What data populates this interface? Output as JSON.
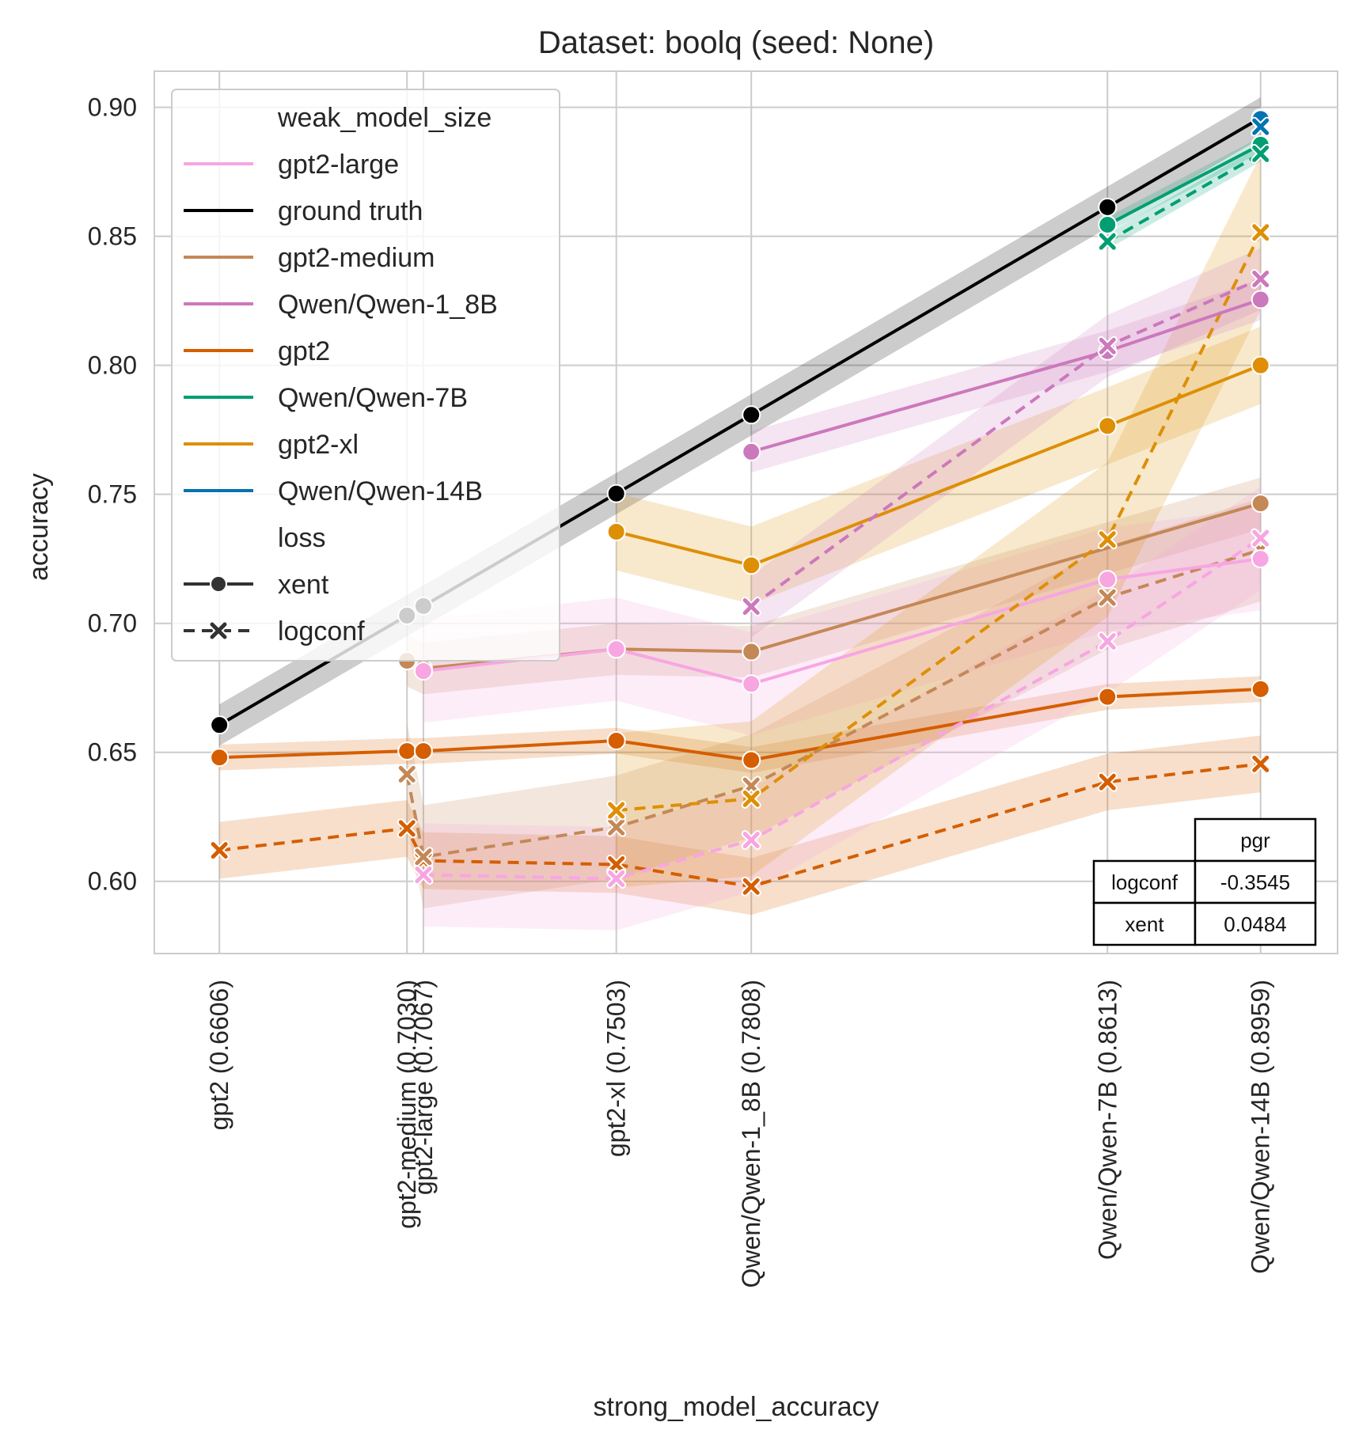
{
  "chart_data": {
    "type": "line",
    "title": "Dataset: boolq (seed: None)",
    "xlabel": "strong_model_accuracy",
    "ylabel": "accuracy",
    "xlim": [
      0.6459,
      0.9133
    ],
    "ylim": [
      0.572,
      0.914
    ],
    "grid": true,
    "x_ticks": [
      {
        "value": 0.6606,
        "label": "gpt2 (0.6606)"
      },
      {
        "value": 0.703,
        "label": "gpt2-medium (0.7030)"
      },
      {
        "value": 0.7067,
        "label": "gpt2-large (0.7067)"
      },
      {
        "value": 0.7503,
        "label": "gpt2-xl (0.7503)"
      },
      {
        "value": 0.7808,
        "label": "Qwen/Qwen-1_8B (0.7808)"
      },
      {
        "value": 0.8613,
        "label": "Qwen/Qwen-7B (0.8613)"
      },
      {
        "value": 0.8959,
        "label": "Qwen/Qwen-14B (0.8959)"
      }
    ],
    "y_ticks": [
      {
        "value": 0.6,
        "label": "0.60"
      },
      {
        "value": 0.65,
        "label": "0.65"
      },
      {
        "value": 0.7,
        "label": "0.70"
      },
      {
        "value": 0.75,
        "label": "0.75"
      },
      {
        "value": 0.8,
        "label": "0.80"
      },
      {
        "value": 0.85,
        "label": "0.85"
      },
      {
        "value": 0.9,
        "label": "0.90"
      }
    ],
    "series": [
      {
        "name": "ground truth",
        "loss": "xent",
        "color": "#000000",
        "band": 0.008,
        "x": [
          0.6606,
          0.703,
          0.7067,
          0.7503,
          0.7808,
          0.8613,
          0.8959
        ],
        "y": [
          0.6606,
          0.703,
          0.7067,
          0.7503,
          0.7808,
          0.8613,
          0.8959
        ]
      },
      {
        "name": "gpt2",
        "loss": "xent",
        "color": "#d55e00",
        "band": 0.005,
        "x": [
          0.6606,
          0.703,
          0.7067,
          0.7503,
          0.7808,
          0.8613,
          0.8959
        ],
        "y": [
          0.648,
          0.6505,
          0.6505,
          0.6545,
          0.647,
          0.6715,
          0.6745
        ]
      },
      {
        "name": "gpt2",
        "loss": "logconf",
        "color": "#d55e00",
        "band": 0.011,
        "x": [
          0.6606,
          0.703,
          0.7067,
          0.7503,
          0.7808,
          0.8613,
          0.8959
        ],
        "y": [
          0.612,
          0.6205,
          0.608,
          0.6065,
          0.598,
          0.6385,
          0.6455
        ]
      },
      {
        "name": "gpt2-medium",
        "loss": "xent",
        "color": "#c48857",
        "band": 0.01,
        "x": [
          0.703,
          0.7067,
          0.7503,
          0.7808,
          0.8959
        ],
        "y": [
          0.6855,
          0.6825,
          0.69,
          0.689,
          0.7465
        ]
      },
      {
        "name": "gpt2-medium",
        "loss": "logconf",
        "color": "#c48857",
        "band": 0.02,
        "x": [
          0.703,
          0.7067,
          0.7503,
          0.7808,
          0.8613,
          0.8959
        ],
        "y": [
          0.6415,
          0.6095,
          0.621,
          0.637,
          0.71,
          0.7285
        ]
      },
      {
        "name": "gpt2-large",
        "loss": "xent",
        "color": "#f7a6e2",
        "band": 0.02,
        "x": [
          0.7067,
          0.7503,
          0.7808,
          0.8613,
          0.8959
        ],
        "y": [
          0.6815,
          0.69,
          0.6765,
          0.717,
          0.725
        ]
      },
      {
        "name": "gpt2-large",
        "loss": "logconf",
        "color": "#f7a6e2",
        "band": 0.02,
        "x": [
          0.7067,
          0.7503,
          0.7808,
          0.8613,
          0.8959
        ],
        "y": [
          0.6025,
          0.601,
          0.616,
          0.693,
          0.733
        ]
      },
      {
        "name": "gpt2-xl",
        "loss": "xent",
        "color": "#de8f05",
        "band": 0.015,
        "x": [
          0.7503,
          0.7808,
          0.8613,
          0.8959
        ],
        "y": [
          0.7355,
          0.7225,
          0.7765,
          0.8
        ]
      },
      {
        "name": "gpt2-xl",
        "loss": "logconf",
        "color": "#de8f05",
        "band": 0.03,
        "x": [
          0.7503,
          0.7808,
          0.8613,
          0.8959
        ],
        "y": [
          0.6275,
          0.632,
          0.7325,
          0.8515
        ]
      },
      {
        "name": "Qwen/Qwen-1_8B",
        "loss": "xent",
        "color": "#cc78bc",
        "band": 0.008,
        "x": [
          0.7808,
          0.8613,
          0.8959
        ],
        "y": [
          0.7665,
          0.8055,
          0.8255
        ]
      },
      {
        "name": "Qwen/Qwen-1_8B",
        "loss": "logconf",
        "color": "#cc78bc",
        "band": 0.012,
        "x": [
          0.7808,
          0.8613,
          0.8959
        ],
        "y": [
          0.7065,
          0.8075,
          0.8335
        ]
      },
      {
        "name": "Qwen/Qwen-7B",
        "loss": "xent",
        "color": "#029e73",
        "band": 0.003,
        "x": [
          0.8613,
          0.8959
        ],
        "y": [
          0.8545,
          0.8855
        ]
      },
      {
        "name": "Qwen/Qwen-7B",
        "loss": "logconf",
        "color": "#029e73",
        "band": 0.003,
        "x": [
          0.8613,
          0.8959
        ],
        "y": [
          0.848,
          0.882
        ]
      },
      {
        "name": "Qwen/Qwen-14B",
        "loss": "xent",
        "color": "#0173b2",
        "band": 0,
        "x": [
          0.8959
        ],
        "y": [
          0.8955
        ]
      },
      {
        "name": "Qwen/Qwen-14B",
        "loss": "logconf",
        "color": "#0173b2",
        "band": 0,
        "x": [
          0.8959
        ],
        "y": [
          0.8925
        ]
      }
    ],
    "legend": {
      "position": "top-left",
      "entries": [
        {
          "label": "weak_model_size",
          "kind": "header"
        },
        {
          "label": "gpt2-large",
          "kind": "line",
          "color": "#f7a6e2"
        },
        {
          "label": "ground truth",
          "kind": "line",
          "color": "#000000"
        },
        {
          "label": "gpt2-medium",
          "kind": "line",
          "color": "#c48857"
        },
        {
          "label": "Qwen/Qwen-1_8B",
          "kind": "line",
          "color": "#cc78bc"
        },
        {
          "label": "gpt2",
          "kind": "line",
          "color": "#d55e00"
        },
        {
          "label": "Qwen/Qwen-7B",
          "kind": "line",
          "color": "#029e73"
        },
        {
          "label": "gpt2-xl",
          "kind": "line",
          "color": "#de8f05"
        },
        {
          "label": "Qwen/Qwen-14B",
          "kind": "line",
          "color": "#0173b2"
        },
        {
          "label": "loss",
          "kind": "header"
        },
        {
          "label": "xent",
          "kind": "style-xent",
          "color": "#333333"
        },
        {
          "label": "logconf",
          "kind": "style-logconf",
          "color": "#333333"
        }
      ]
    },
    "table": {
      "position": "bottom-right",
      "header": "pgr",
      "rows": [
        {
          "label": "logconf",
          "value": "-0.3545"
        },
        {
          "label": "xent",
          "value": "0.0484"
        }
      ]
    }
  }
}
